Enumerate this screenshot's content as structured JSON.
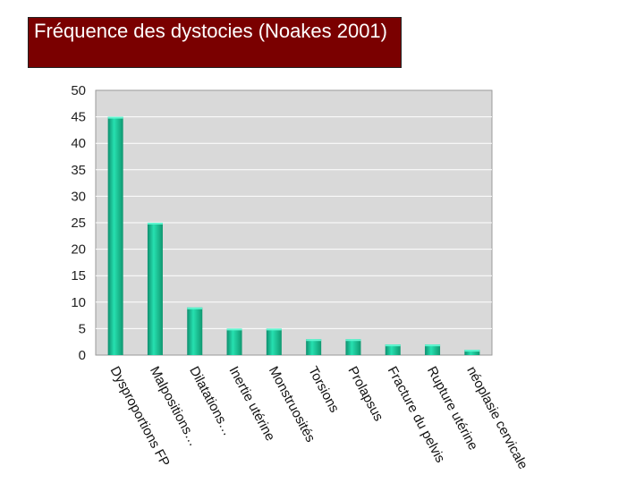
{
  "slide": {
    "title": "Fréquence des dystocies (Noakes 2001)"
  },
  "chart_data": {
    "type": "bar",
    "title": "",
    "xlabel": "",
    "ylabel": "",
    "categories": [
      "Dysproportions FP",
      "Malpositions…",
      "Dilatations…",
      "Inertie utérine",
      "Monstruosités",
      "Torsions",
      "Prolapsus",
      "Fracture du pelvis",
      "Rupture utérine",
      "néoplasie cervicale"
    ],
    "values": [
      45,
      25,
      9,
      5,
      5,
      3,
      3,
      2,
      2,
      1
    ],
    "ylim": [
      0,
      50
    ],
    "yticks": [
      0,
      5,
      10,
      15,
      20,
      25,
      30,
      35,
      40,
      45,
      50
    ],
    "grid": true,
    "legend": "none",
    "colors": {
      "bar": "#20c9a0",
      "bar_dark": "#0e8f6e",
      "plot_bg": "#d9d9d9",
      "grid": "#ffffff"
    }
  }
}
